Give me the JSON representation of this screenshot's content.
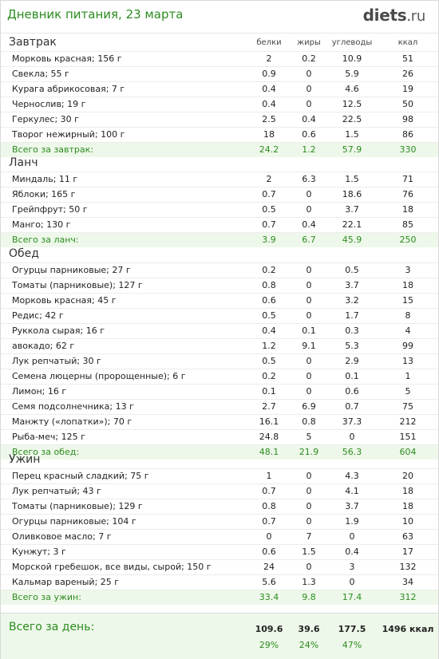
{
  "header": {
    "title": "Дневник питания, 23 марта",
    "logo_main": "diets",
    "logo_dot": ".",
    "logo_tld": "ru"
  },
  "columns": {
    "protein": "белки",
    "fat": "жиры",
    "carbs": "углеводы",
    "kcal": "ккал"
  },
  "meals": [
    {
      "name": "Завтрак",
      "rows": [
        [
          "Морковь красная; 156 г",
          "2",
          "0.2",
          "10.9",
          "51"
        ],
        [
          "Свекла; 55 г",
          "0.9",
          "0",
          "5.9",
          "26"
        ],
        [
          "Курага абрикосовая; 7 г",
          "0.4",
          "0",
          "4.6",
          "19"
        ],
        [
          "Чернослив; 19 г",
          "0.4",
          "0",
          "12.5",
          "50"
        ],
        [
          "Геркулес; 30 г",
          "2.5",
          "0.4",
          "22.5",
          "98"
        ],
        [
          "Творог нежирный; 100 г",
          "18",
          "0.6",
          "1.5",
          "86"
        ]
      ],
      "total": [
        "Всего за завтрак:",
        "24.2",
        "1.2",
        "57.9",
        "330"
      ]
    },
    {
      "name": "Ланч",
      "rows": [
        [
          "Миндаль; 11 г",
          "2",
          "6.3",
          "1.5",
          "71"
        ],
        [
          "Яблоки; 165 г",
          "0.7",
          "0",
          "18.6",
          "76"
        ],
        [
          "Грейпфрут; 50 г",
          "0.5",
          "0",
          "3.7",
          "18"
        ],
        [
          "Манго; 130 г",
          "0.7",
          "0.4",
          "22.1",
          "85"
        ]
      ],
      "total": [
        "Всего за ланч:",
        "3.9",
        "6.7",
        "45.9",
        "250"
      ]
    },
    {
      "name": "Обед",
      "rows": [
        [
          "Огурцы парниковые; 27 г",
          "0.2",
          "0",
          "0.5",
          "3"
        ],
        [
          "Томаты (парниковые); 127 г",
          "0.8",
          "0",
          "3.7",
          "18"
        ],
        [
          "Морковь красная; 45 г",
          "0.6",
          "0",
          "3.2",
          "15"
        ],
        [
          "Редис; 42 г",
          "0.5",
          "0",
          "1.7",
          "8"
        ],
        [
          "Руккола сырая; 16 г",
          "0.4",
          "0.1",
          "0.3",
          "4"
        ],
        [
          "авокадо; 62 г",
          "1.2",
          "9.1",
          "5.3",
          "99"
        ],
        [
          "Лук репчатый; 30 г",
          "0.5",
          "0",
          "2.9",
          "13"
        ],
        [
          "Семена люцерны (пророщенные); 6 г",
          "0.2",
          "0",
          "0.1",
          "1"
        ],
        [
          "Лимон; 16 г",
          "0.1",
          "0",
          "0.6",
          "5"
        ],
        [
          "Семя подсолнечника; 13 г",
          "2.7",
          "6.9",
          "0.7",
          "75"
        ],
        [
          "Манжту («лопатки»); 70 г",
          "16.1",
          "0.8",
          "37.3",
          "212"
        ],
        [
          "Рыба-меч; 125 г",
          "24.8",
          "5",
          "0",
          "151"
        ]
      ],
      "total": [
        "Всего за обед:",
        "48.1",
        "21.9",
        "56.3",
        "604"
      ]
    },
    {
      "name": "Ужин",
      "rows": [
        [
          "Перец красный сладкий; 75 г",
          "1",
          "0",
          "4.3",
          "20"
        ],
        [
          "Лук репчатый; 43 г",
          "0.7",
          "0",
          "4.1",
          "18"
        ],
        [
          "Томаты (парниковые); 129 г",
          "0.8",
          "0",
          "3.7",
          "18"
        ],
        [
          "Огурцы парниковые; 104 г",
          "0.7",
          "0",
          "1.9",
          "10"
        ],
        [
          "Оливковое масло; 7 г",
          "0",
          "7",
          "0",
          "63"
        ],
        [
          "Кунжут; 3 г",
          "0.6",
          "1.5",
          "0.4",
          "17"
        ],
        [
          "Морской гребешок, все виды, сырой; 150 г",
          "24",
          "0",
          "3",
          "132"
        ],
        [
          "Кальмар вареный; 25 г",
          "5.6",
          "1.3",
          "0",
          "34"
        ]
      ],
      "total": [
        "Всего за ужин:",
        "33.4",
        "9.8",
        "17.4",
        "312"
      ]
    }
  ],
  "day_total": {
    "label": "Всего за день:",
    "protein": "109.6",
    "fat": "39.6",
    "carbs": "177.5",
    "kcal": "1496 ккал",
    "protein_pct": "29%",
    "fat_pct": "24%",
    "carbs_pct": "47%"
  }
}
